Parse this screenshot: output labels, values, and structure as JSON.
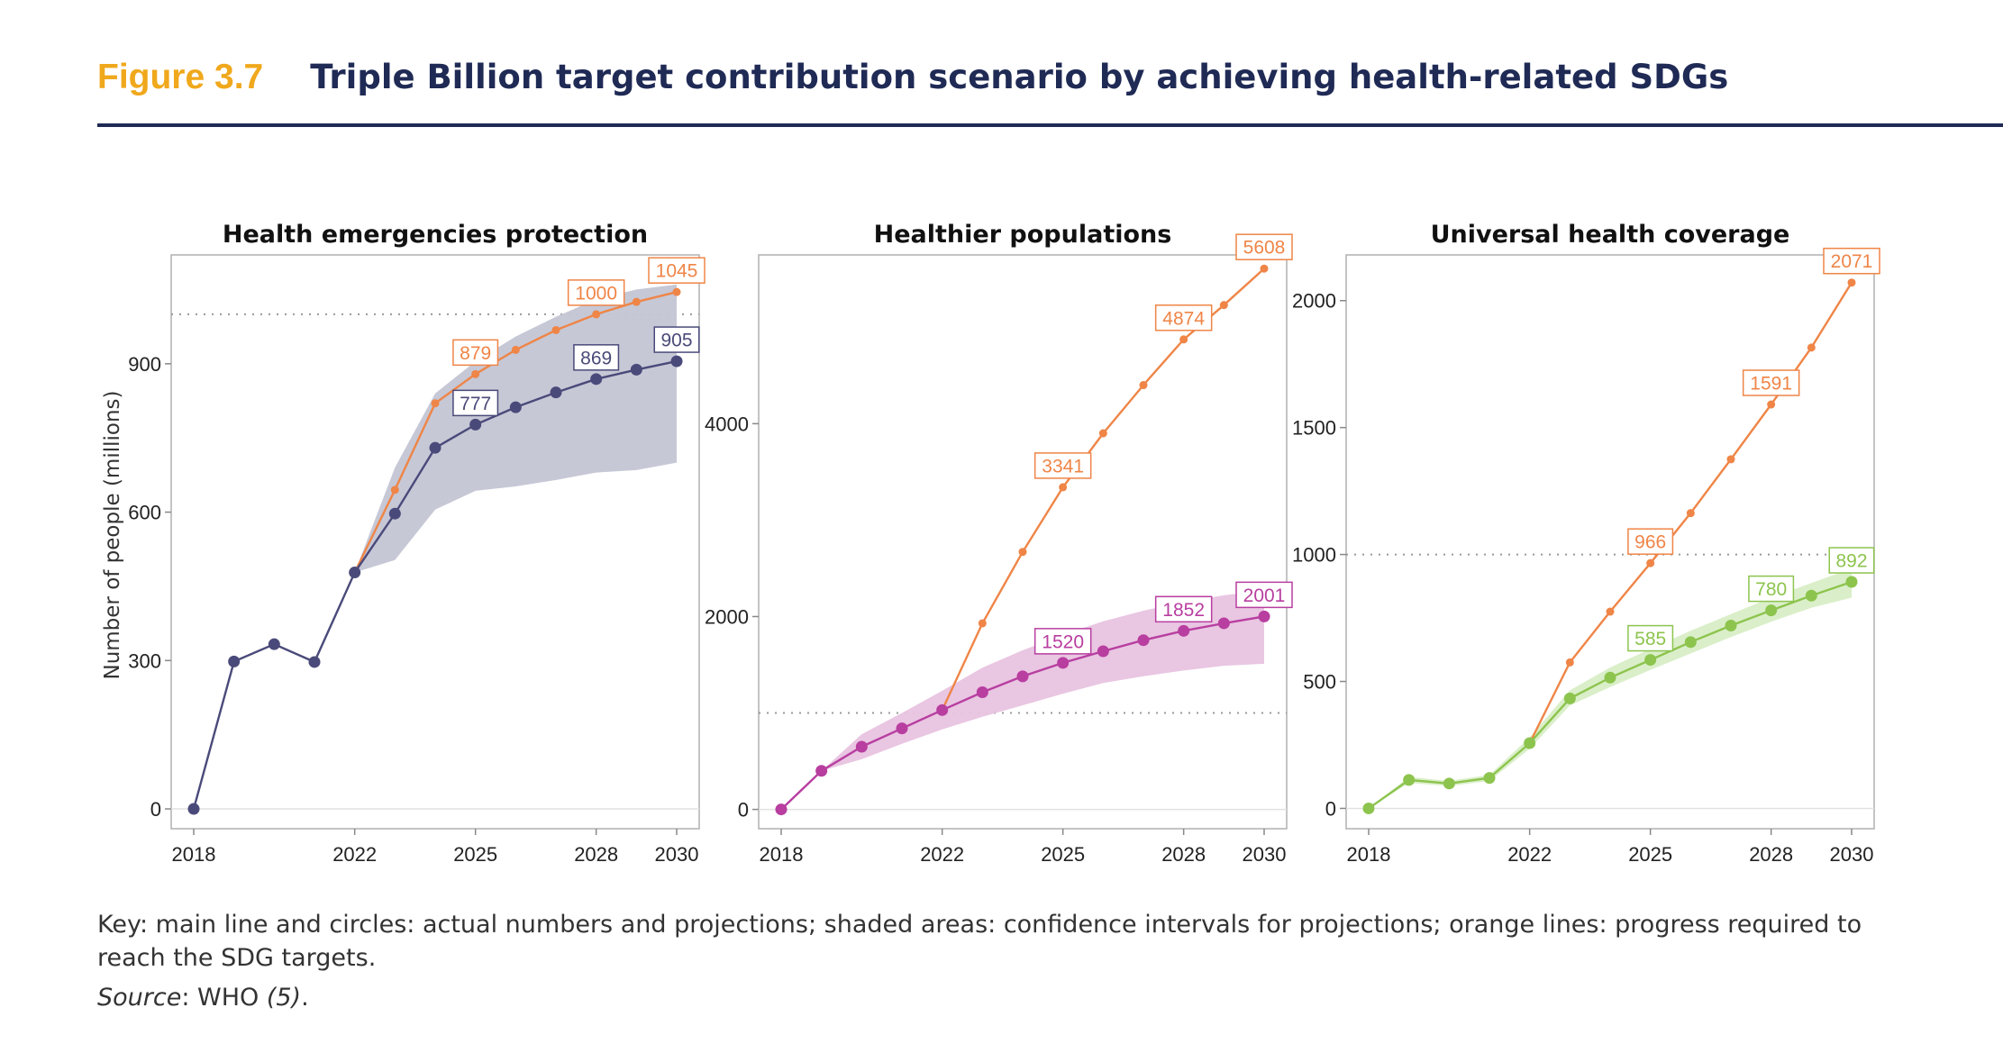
{
  "header": {
    "figure_label": "Figure 3.7",
    "title": "Triple Billion target contribution scenario by achieving health-related SDGs"
  },
  "y_axis_label": "Number of people (millions)",
  "key_text": "Key: main line and circles: actual numbers and projections; shaded areas: confidence intervals for projections; orange lines: progress required to reach the SDG targets.",
  "source": {
    "label": "Source",
    "sep": ": WHO ",
    "ref": "(5)",
    "end": "."
  },
  "colors": {
    "target_line": "#ef8547",
    "hep_main": "#4a4a7a",
    "hep_band": "#c3c5d4",
    "hp_main": "#b83ea0",
    "hp_band": "#e8c3e0",
    "uhc_main": "#8dc44e",
    "uhc_band": "#d8eec6",
    "axis": "#b0b0b0",
    "ref_line": "#999999"
  },
  "chart_data": [
    {
      "type": "line",
      "title": "Health emergencies protection",
      "ylabel": "Number of people (millions)",
      "xlim": [
        2018,
        2030
      ],
      "ylim": [
        -40,
        1120
      ],
      "x_ticks": [
        2018,
        2022,
        2025,
        2028,
        2030
      ],
      "y_ticks": [
        0,
        300,
        600,
        900
      ],
      "reference_line": 1000,
      "series": [
        {
          "role": "main",
          "x": [
            2018,
            2019,
            2020,
            2021,
            2022,
            2023,
            2024,
            2025,
            2026,
            2027,
            2028,
            2029,
            2030
          ],
          "values": [
            0,
            298,
            333,
            297,
            478,
            597,
            730,
            777,
            812,
            842,
            869,
            888,
            905
          ]
        },
        {
          "role": "target",
          "x": [
            2022,
            2023,
            2024,
            2025,
            2026,
            2027,
            2028,
            2029,
            2030
          ],
          "values": [
            478,
            645,
            820,
            879,
            928,
            968,
            1000,
            1025,
            1045
          ]
        }
      ],
      "confidence_band": {
        "x": [
          2022,
          2023,
          2024,
          2025,
          2026,
          2027,
          2028,
          2029,
          2030
        ],
        "lower": [
          478,
          503,
          605,
          643,
          652,
          665,
          680,
          685,
          700
        ],
        "upper": [
          478,
          690,
          840,
          905,
          955,
          995,
          1030,
          1050,
          1060
        ]
      },
      "data_labels": [
        {
          "x": 2025,
          "value": 879,
          "text": "879",
          "series": "target",
          "pos": "above"
        },
        {
          "x": 2028,
          "value": 1000,
          "text": "1000",
          "series": "target",
          "pos": "above"
        },
        {
          "x": 2030,
          "value": 1045,
          "text": "1045",
          "series": "target",
          "pos": "above"
        },
        {
          "x": 2025,
          "value": 777,
          "text": "777",
          "series": "main",
          "pos": "above"
        },
        {
          "x": 2028,
          "value": 869,
          "text": "869",
          "series": "main",
          "pos": "above"
        },
        {
          "x": 2030,
          "value": 905,
          "text": "905",
          "series": "main",
          "pos": "above"
        }
      ]
    },
    {
      "type": "line",
      "title": "Healthier populations",
      "xlim": [
        2018,
        2030
      ],
      "ylim": [
        -200,
        5750
      ],
      "x_ticks": [
        2018,
        2022,
        2025,
        2028,
        2030
      ],
      "y_ticks": [
        0,
        2000,
        4000
      ],
      "reference_line": 1000,
      "series": [
        {
          "role": "main",
          "x": [
            2018,
            2019,
            2020,
            2021,
            2022,
            2023,
            2024,
            2025,
            2026,
            2027,
            2028,
            2029,
            2030
          ],
          "values": [
            0,
            400,
            650,
            840,
            1030,
            1215,
            1380,
            1520,
            1640,
            1755,
            1852,
            1930,
            2001
          ]
        },
        {
          "role": "target",
          "x": [
            2022,
            2023,
            2024,
            2025,
            2026,
            2027,
            2028,
            2029,
            2030
          ],
          "values": [
            1030,
            1930,
            2670,
            3341,
            3900,
            4400,
            4874,
            5230,
            5608
          ]
        }
      ],
      "confidence_band": {
        "x": [
          2019,
          2020,
          2021,
          2022,
          2023,
          2024,
          2025,
          2026,
          2027,
          2028,
          2029,
          2030
        ],
        "lower": [
          400,
          520,
          680,
          830,
          960,
          1080,
          1200,
          1310,
          1380,
          1440,
          1490,
          1510
        ],
        "upper": [
          400,
          780,
          1000,
          1230,
          1470,
          1650,
          1810,
          1950,
          2060,
          2150,
          2220,
          2270
        ]
      },
      "data_labels": [
        {
          "x": 2025,
          "value": 3341,
          "text": "3341",
          "series": "target",
          "pos": "above"
        },
        {
          "x": 2028,
          "value": 4874,
          "text": "4874",
          "series": "target",
          "pos": "above"
        },
        {
          "x": 2030,
          "value": 5608,
          "text": "5608",
          "series": "target",
          "pos": "above"
        },
        {
          "x": 2025,
          "value": 1520,
          "text": "1520",
          "series": "main",
          "pos": "above"
        },
        {
          "x": 2028,
          "value": 1852,
          "text": "1852",
          "series": "main",
          "pos": "above"
        },
        {
          "x": 2030,
          "value": 2001,
          "text": "2001",
          "series": "main",
          "pos": "above"
        }
      ]
    },
    {
      "type": "line",
      "title": "Universal health coverage",
      "xlim": [
        2018,
        2030
      ],
      "ylim": [
        -80,
        2180
      ],
      "x_ticks": [
        2018,
        2022,
        2025,
        2028,
        2030
      ],
      "y_ticks": [
        0,
        500,
        1000,
        1500,
        2000
      ],
      "reference_line": 1000,
      "series": [
        {
          "role": "main",
          "x": [
            2018,
            2019,
            2020,
            2021,
            2022,
            2023,
            2024,
            2025,
            2026,
            2027,
            2028,
            2029,
            2030
          ],
          "values": [
            0,
            112,
            98,
            120,
            257,
            433,
            515,
            585,
            655,
            720,
            780,
            838,
            892
          ]
        },
        {
          "role": "target",
          "x": [
            2022,
            2023,
            2024,
            2025,
            2026,
            2027,
            2028,
            2029,
            2030
          ],
          "values": [
            257,
            575,
            775,
            966,
            1163,
            1375,
            1591,
            1815,
            2071
          ]
        }
      ],
      "confidence_band": {
        "x": [
          2018,
          2019,
          2020,
          2021,
          2022,
          2023,
          2024,
          2025,
          2026,
          2027,
          2028,
          2029,
          2030
        ],
        "lower": [
          0,
          100,
          88,
          108,
          235,
          405,
          478,
          545,
          610,
          675,
          735,
          790,
          830
        ],
        "upper": [
          0,
          124,
          108,
          132,
          280,
          465,
          555,
          628,
          700,
          765,
          830,
          888,
          945
        ]
      },
      "data_labels": [
        {
          "x": 2025,
          "value": 966,
          "text": "966",
          "series": "target",
          "pos": "above"
        },
        {
          "x": 2028,
          "value": 1591,
          "text": "1591",
          "series": "target",
          "pos": "above"
        },
        {
          "x": 2030,
          "value": 2071,
          "text": "2071",
          "series": "target",
          "pos": "above"
        },
        {
          "x": 2025,
          "value": 585,
          "text": "585",
          "series": "main",
          "pos": "above"
        },
        {
          "x": 2028,
          "value": 780,
          "text": "780",
          "series": "main",
          "pos": "above"
        },
        {
          "x": 2030,
          "value": 892,
          "text": "892",
          "series": "main",
          "pos": "above"
        }
      ]
    }
  ]
}
